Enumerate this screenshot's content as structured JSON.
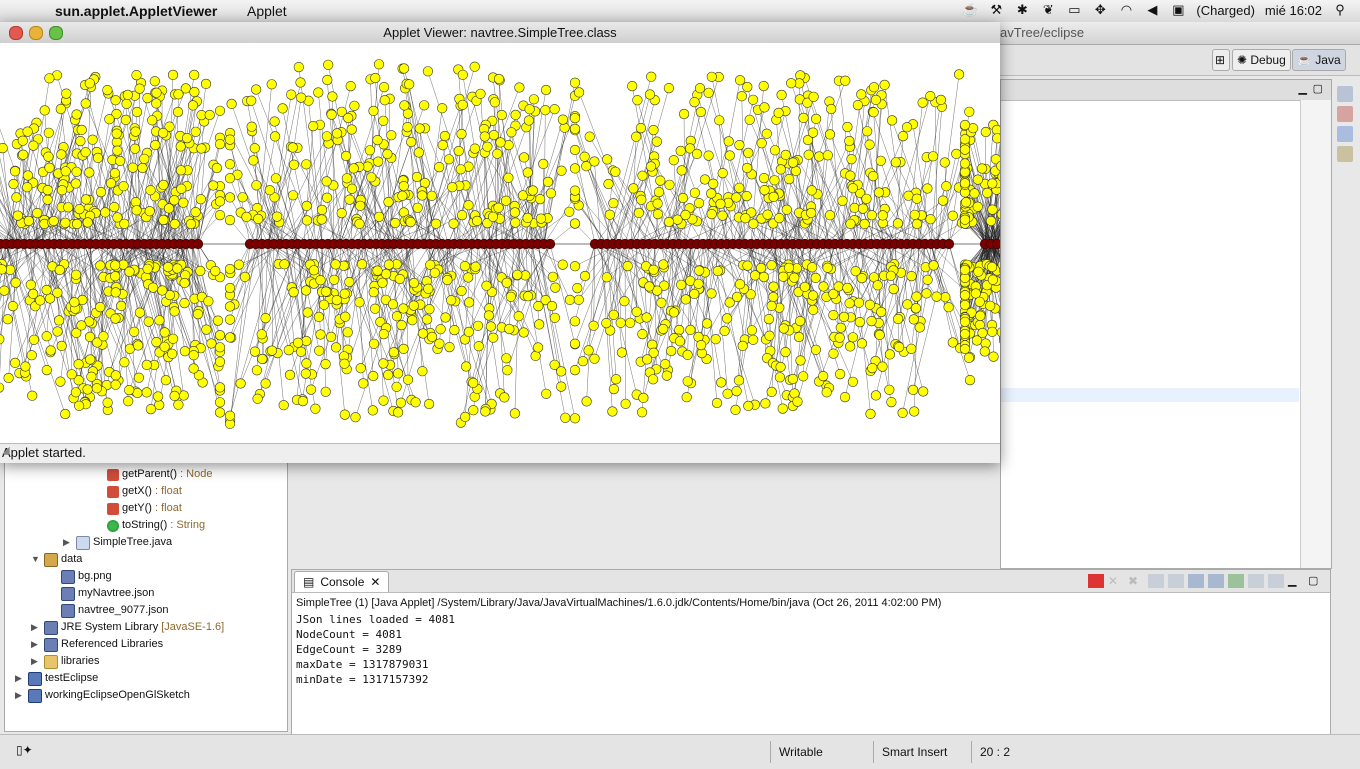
{
  "menubar": {
    "apple_glyph": "",
    "app_name": "sun.applet.AppletViewer",
    "menus": [
      "Applet"
    ],
    "battery": "(Charged)",
    "clock": "mié 16:02"
  },
  "eclipse": {
    "window_title_fragment": "avTree/eclipse",
    "perspectives": [
      {
        "label": "Debug"
      },
      {
        "label": "Java"
      }
    ]
  },
  "applet_window": {
    "title": "Applet Viewer: navtree.SimpleTree.class",
    "status": "Applet started."
  },
  "package_explorer": {
    "rows": [
      {
        "label": "getParent()",
        "type": " : Node",
        "icon": "method-icon"
      },
      {
        "label": "getX()",
        "type": " : float",
        "icon": "method-icon"
      },
      {
        "label": "getY()",
        "type": " : float",
        "icon": "method-icon"
      },
      {
        "label": "toString()",
        "type": " : String",
        "icon": "method-icon"
      },
      {
        "label": "SimpleTree.java",
        "type": "",
        "icon": "java-file-icon"
      },
      {
        "label": "data",
        "type": "",
        "icon": "folder-icon"
      },
      {
        "label": "bg.png",
        "type": "",
        "icon": "image-file-icon"
      },
      {
        "label": "myNavtree.json",
        "type": "",
        "icon": "file-icon"
      },
      {
        "label": "navtree_9077.json",
        "type": "",
        "icon": "file-icon"
      },
      {
        "label": "JRE System Library",
        "type": " [JavaSE-1.6]",
        "icon": "library-icon"
      },
      {
        "label": "Referenced Libraries",
        "type": "",
        "icon": "library-icon"
      },
      {
        "label": "libraries",
        "type": "",
        "icon": "folder-icon"
      },
      {
        "label": "testEclipse",
        "type": "",
        "icon": "project-icon"
      },
      {
        "label": "workingEclipseOpenGlSketch",
        "type": "",
        "icon": "project-icon"
      }
    ]
  },
  "console": {
    "tab_label": "Console",
    "description": "SimpleTree (1) [Java Applet] /System/Library/Java/JavaVirtualMachines/1.6.0.jdk/Contents/Home/bin/java (Oct 26, 2011 4:02:00 PM)",
    "lines": [
      "JSon lines loaded = 4081",
      "NodeCount = 4081",
      "EdgeCount = 3289",
      "maxDate = 1317879031",
      "minDate = 1317157392"
    ]
  },
  "statusbar": {
    "writable": "Writable",
    "insert_mode": "Smart Insert",
    "position": "20 : 2"
  },
  "colors": {
    "leaf_node": "#ffff00",
    "root_node": "#7a0000",
    "edge": "#222222"
  }
}
